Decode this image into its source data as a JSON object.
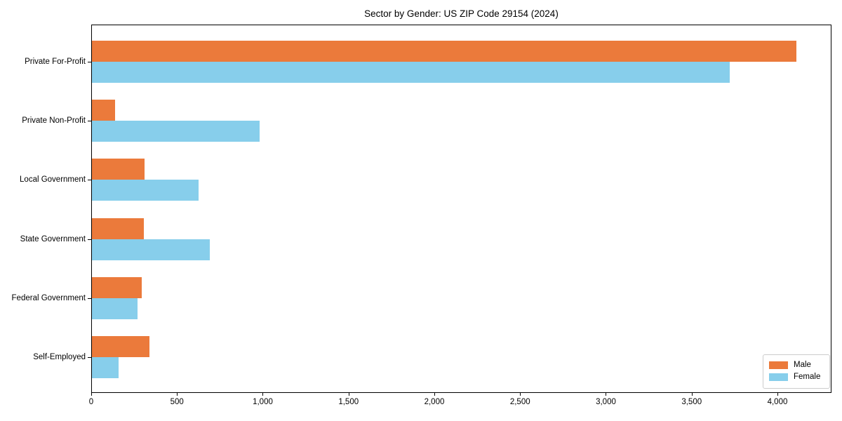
{
  "chart_data": {
    "type": "bar",
    "orientation": "horizontal",
    "title": "Sector by Gender: US ZIP Code 29154 (2024)",
    "categories": [
      "Private For-Profit",
      "Private Non-Profit",
      "Local Government",
      "State Government",
      "Federal Government",
      "Self-Employed"
    ],
    "series": [
      {
        "name": "Male",
        "color": "#eb7a3b",
        "values": [
          4110,
          140,
          310,
          305,
          295,
          340
        ]
      },
      {
        "name": "Female",
        "color": "#87ceeb",
        "values": [
          3720,
          980,
          625,
          690,
          270,
          160
        ]
      }
    ],
    "xlabel": "",
    "ylabel": "",
    "xlim": [
      0,
      4315
    ],
    "xticks": [
      0,
      500,
      1000,
      1500,
      2000,
      2500,
      3000,
      3500,
      4000
    ],
    "xtick_labels": [
      "0",
      "500",
      "1,000",
      "1,500",
      "2,000",
      "2,500",
      "3,000",
      "3,500",
      "4,000"
    ],
    "grid": false,
    "legend": {
      "position": "lower right"
    }
  }
}
